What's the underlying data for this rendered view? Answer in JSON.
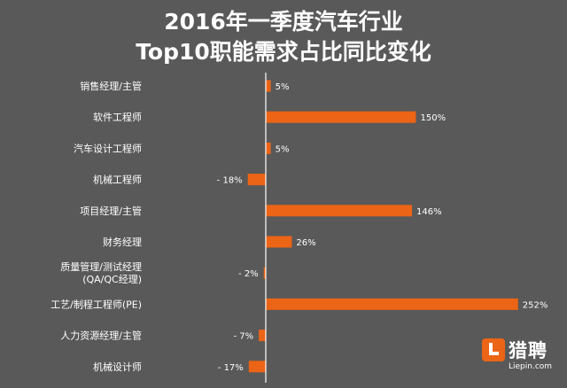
{
  "chart_data": {
    "type": "bar",
    "orientation": "horizontal",
    "title_lines": [
      "2016年一季度汽车行业",
      "Top10职能需求占比同比变化"
    ],
    "categories": [
      [
        "销售经理/主管"
      ],
      [
        "软件工程师"
      ],
      [
        "汽车设计工程师"
      ],
      [
        "机械工程师"
      ],
      [
        "项目经理/主管"
      ],
      [
        "财务经理"
      ],
      [
        "质量管理/测试经理",
        "(QA/QC经理)"
      ],
      [
        "工艺/制程工程师(PE)"
      ],
      [
        "人力资源经理/主管"
      ],
      [
        "机械设计师"
      ]
    ],
    "values": [
      5,
      150,
      5,
      -18,
      146,
      26,
      -2,
      252,
      -7,
      -17
    ],
    "value_labels": [
      "5%",
      "150%",
      "5%",
      "- 18%",
      "146%",
      "26%",
      "- 2%",
      "252%",
      "- 7%",
      "- 17%"
    ],
    "unit": "%",
    "grid": false,
    "legend": "none",
    "colors": {
      "bar": "#ec6416",
      "axis": "#ffffff",
      "background": "#595959",
      "text": "#ffffff"
    }
  },
  "logo": {
    "name": "猎聘",
    "url": "Liepin.com"
  }
}
